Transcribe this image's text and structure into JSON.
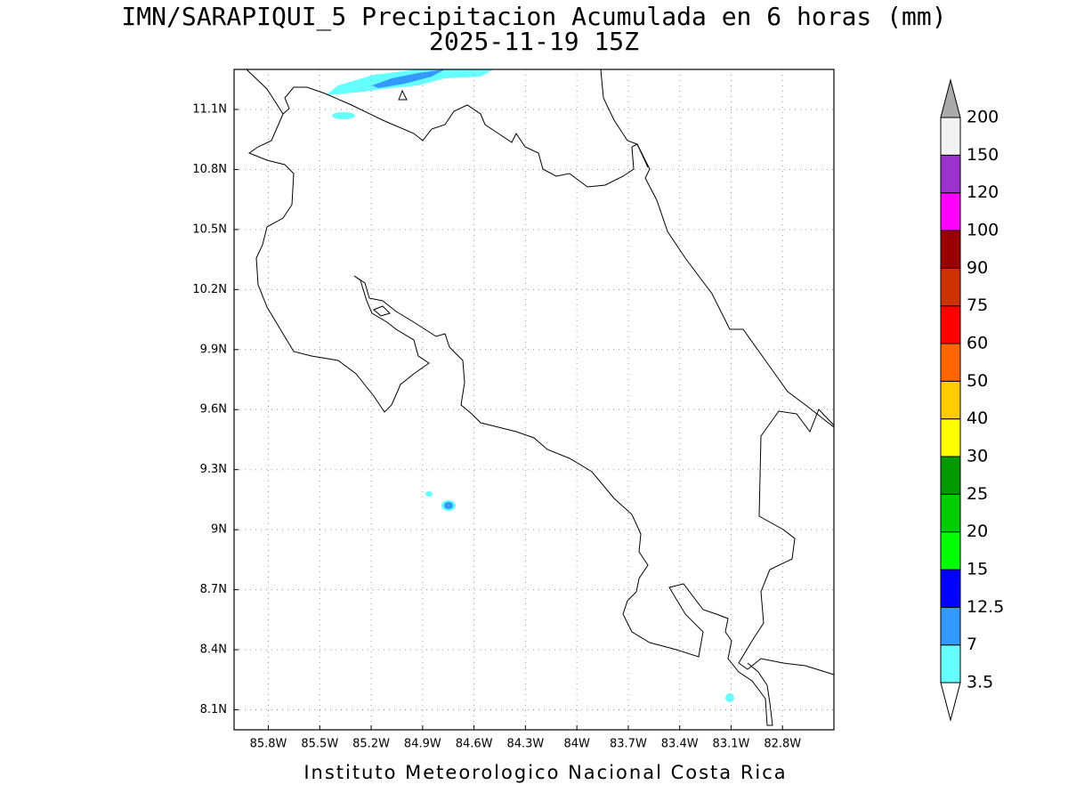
{
  "title": "IMN/SARAPIQUI_5 Precipitacion Acumulada en 6 horas (mm)",
  "subtitle": "2025-11-19 15Z",
  "map": {
    "xlim": [
      -86,
      -82.5
    ],
    "ylim": [
      8,
      11.3
    ],
    "yticks": [
      {
        "value": 11.1,
        "label": "11.1N"
      },
      {
        "value": 10.8,
        "label": "10.8N"
      },
      {
        "value": 10.5,
        "label": "10.5N"
      },
      {
        "value": 10.2,
        "label": "10.2N"
      },
      {
        "value": 9.9,
        "label": "9.9N"
      },
      {
        "value": 9.6,
        "label": "9.6N"
      },
      {
        "value": 9.3,
        "label": "9.3N"
      },
      {
        "value": 9,
        "label": "9N"
      },
      {
        "value": 8.7,
        "label": "8.7N"
      },
      {
        "value": 8.4,
        "label": "8.4N"
      },
      {
        "value": 8.1,
        "label": "8.1N"
      }
    ],
    "xticks": [
      {
        "value": -85.8,
        "label": "85.8W"
      },
      {
        "value": -85.5,
        "label": "85.5W"
      },
      {
        "value": -85.2,
        "label": "85.2W"
      },
      {
        "value": -84.9,
        "label": "84.9W"
      },
      {
        "value": -84.6,
        "label": "84.6W"
      },
      {
        "value": -84.3,
        "label": "84.3W"
      },
      {
        "value": -84,
        "label": "84W"
      },
      {
        "value": -83.7,
        "label": "83.7W"
      },
      {
        "value": -83.4,
        "label": "83.4W"
      },
      {
        "value": -83.1,
        "label": "83.1W"
      },
      {
        "value": -82.8,
        "label": "82.8W"
      }
    ],
    "grid": true
  },
  "colorbar": {
    "levels": [
      "3.5",
      "7",
      "12.5",
      "15",
      "20",
      "25",
      "30",
      "40",
      "50",
      "60",
      "75",
      "90",
      "100",
      "120",
      "150",
      "200"
    ],
    "colors": [
      "#ffffff",
      "#66ffff",
      "#3399ff",
      "#0000ff",
      "#00ff00",
      "#00cc00",
      "#009900",
      "#ffff00",
      "#ffcc00",
      "#ff6600",
      "#ff0000",
      "#cc3300",
      "#990000",
      "#ff00ff",
      "#9933cc",
      "#f2f2f2",
      "#aaaaaa"
    ]
  },
  "footer": "Instituto Meteorologico Nacional Costa Rica"
}
